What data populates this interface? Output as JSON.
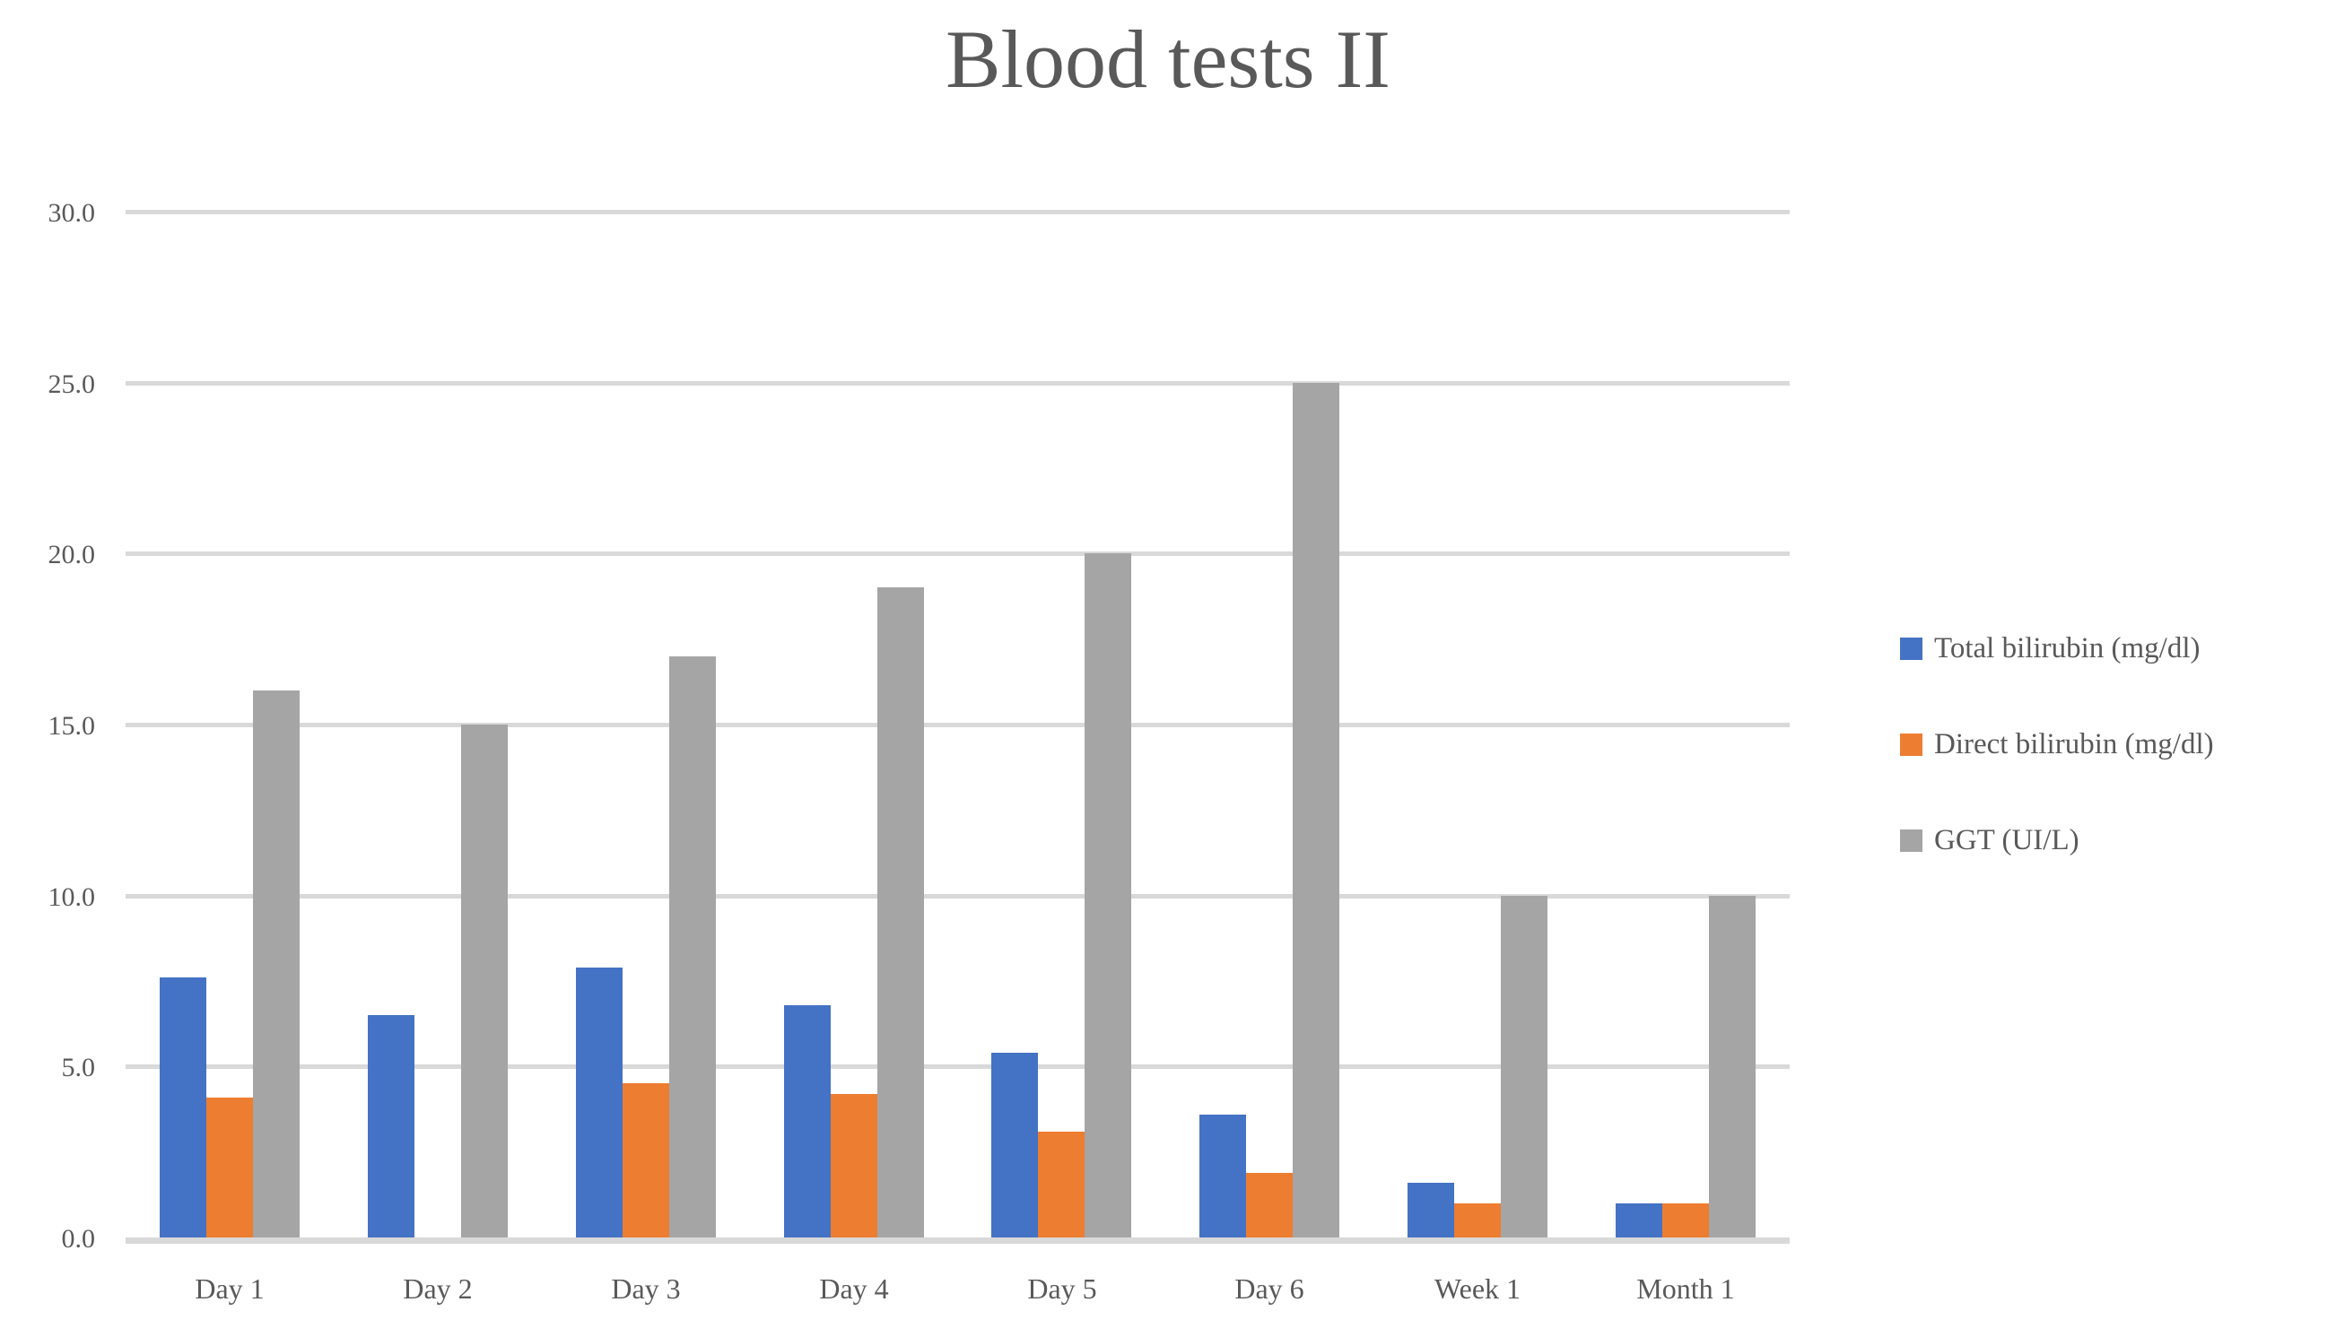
{
  "chart_data": {
    "type": "bar",
    "title": "Blood tests II",
    "categories": [
      "Day 1",
      "Day 2",
      "Day 3",
      "Day 4",
      "Day 5",
      "Day 6",
      "Week 1",
      "Month 1"
    ],
    "series": [
      {
        "name": "Total bilirubin (mg/dl)",
        "color": "#4472C4",
        "values": [
          7.6,
          6.5,
          7.9,
          6.8,
          5.4,
          3.6,
          1.6,
          1.0
        ]
      },
      {
        "name": "Direct bilirubin (mg/dl)",
        "color": "#ED7D31",
        "values": [
          4.1,
          0,
          4.5,
          4.2,
          3.1,
          1.9,
          1.0,
          1.0
        ]
      },
      {
        "name": "GGT (UI/L)",
        "color": "#A5A5A5",
        "values": [
          16.0,
          15.0,
          17.0,
          19.0,
          20.0,
          25.0,
          10.0,
          10.0
        ]
      }
    ],
    "y_axis": {
      "min": 0,
      "max": 30,
      "step": 5,
      "tick_labels": [
        "0.0",
        "5.0",
        "10.0",
        "15.0",
        "20.0",
        "25.0",
        "30.0"
      ]
    },
    "x_axis": {
      "tick_labels": [
        "Day 1",
        "Day 2",
        "Day 3",
        "Day 4",
        "Day 5",
        "Day 6",
        "Week 1",
        "Month 1"
      ]
    },
    "grid": true,
    "legend_position": "right",
    "legend": [
      "Total bilirubin (mg/dl)",
      "Direct bilirubin (mg/dl)",
      "GGT (UI/L)"
    ],
    "colors": {
      "title_text": "#595959",
      "axis_text": "#595959",
      "gridline": "#D9D9D9",
      "axis_line": "#D9D9D9",
      "background": "#FFFFFF"
    }
  }
}
